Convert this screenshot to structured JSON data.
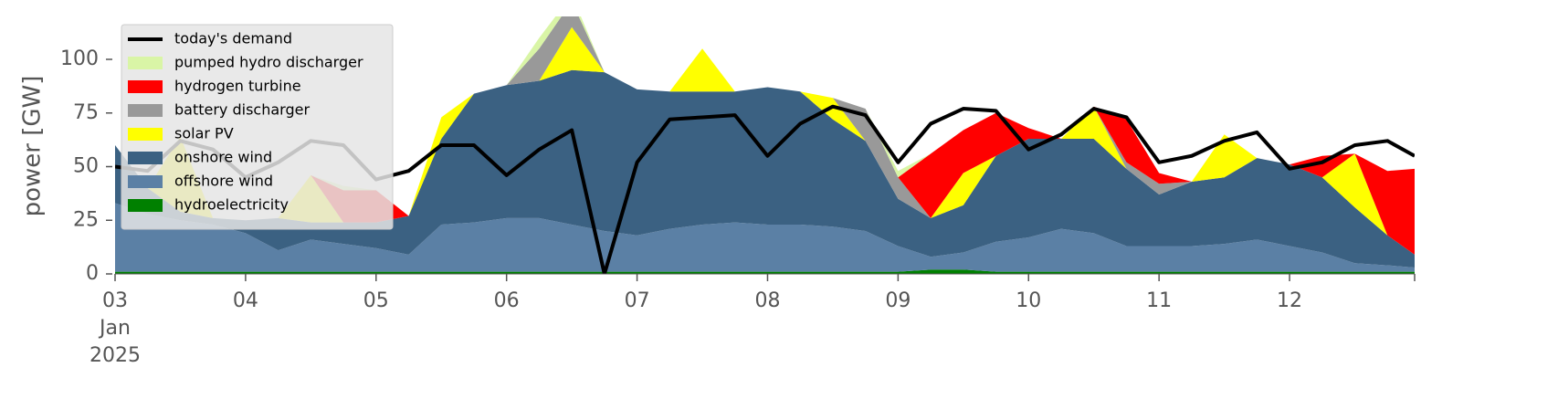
{
  "chart_data": {
    "type": "stacked_area",
    "ylabel": "power [GW]",
    "month_label": "Jan",
    "year_label": "2025",
    "x": [
      "2025-01-03T00:00",
      "2025-01-03T06:00",
      "2025-01-03T12:00",
      "2025-01-03T18:00",
      "2025-01-04T00:00",
      "2025-01-04T06:00",
      "2025-01-04T12:00",
      "2025-01-04T18:00",
      "2025-01-05T00:00",
      "2025-01-05T06:00",
      "2025-01-05T12:00",
      "2025-01-05T18:00",
      "2025-01-06T00:00",
      "2025-01-06T06:00",
      "2025-01-06T12:00",
      "2025-01-06T18:00",
      "2025-01-07T00:00",
      "2025-01-07T06:00",
      "2025-01-07T12:00",
      "2025-01-07T18:00",
      "2025-01-08T00:00",
      "2025-01-08T06:00",
      "2025-01-08T12:00",
      "2025-01-08T18:00",
      "2025-01-09T00:00",
      "2025-01-09T06:00",
      "2025-01-09T12:00",
      "2025-01-09T18:00",
      "2025-01-10T00:00",
      "2025-01-10T06:00",
      "2025-01-10T12:00",
      "2025-01-10T18:00",
      "2025-01-11T00:00",
      "2025-01-11T06:00",
      "2025-01-11T12:00",
      "2025-01-11T18:00",
      "2025-01-12T00:00",
      "2025-01-12T06:00",
      "2025-01-12T12:00",
      "2025-01-12T18:00",
      "2025-01-12T23:00"
    ],
    "xlim": [
      "2025-01-03T00:00",
      "2025-01-12T23:00"
    ],
    "xticks": [
      {
        "value": "2025-01-03T00:00",
        "label": "03"
      },
      {
        "value": "2025-01-04T00:00",
        "label": "04"
      },
      {
        "value": "2025-01-05T00:00",
        "label": "05"
      },
      {
        "value": "2025-01-06T00:00",
        "label": "06"
      },
      {
        "value": "2025-01-07T00:00",
        "label": "07"
      },
      {
        "value": "2025-01-08T00:00",
        "label": "08"
      },
      {
        "value": "2025-01-09T00:00",
        "label": "09"
      },
      {
        "value": "2025-01-10T00:00",
        "label": "10"
      },
      {
        "value": "2025-01-11T00:00",
        "label": "11"
      },
      {
        "value": "2025-01-12T00:00",
        "label": "12"
      }
    ],
    "ylim": [
      0,
      120
    ],
    "yticks": [
      0,
      25,
      50,
      75,
      100
    ],
    "legend": "upper left",
    "series": [
      {
        "name": "today's demand",
        "kind": "line",
        "color": "#000000",
        "values": [
          50,
          48,
          62,
          58,
          45,
          52,
          62,
          60,
          44,
          48,
          60,
          60,
          46,
          58,
          67,
          0,
          52,
          72,
          73,
          74,
          55,
          70,
          78,
          74,
          52,
          70,
          77,
          76,
          58,
          65,
          77,
          73,
          52,
          55,
          62,
          66,
          49,
          52,
          60,
          62,
          55
        ]
      },
      {
        "name": "pumped hydro discharger",
        "kind": "area",
        "color": "#d9f5a6",
        "values": [
          0,
          0,
          0,
          0,
          0,
          0,
          0,
          2,
          0,
          0,
          0,
          0,
          0,
          5,
          3,
          0,
          0,
          0,
          0,
          0,
          0,
          0,
          0,
          0,
          3,
          0,
          0,
          0,
          0,
          0,
          0,
          0,
          0,
          0,
          0,
          0,
          0,
          0,
          0,
          0,
          0
        ]
      },
      {
        "name": "hydrogen turbine",
        "kind": "area",
        "color": "#ff0000",
        "values": [
          0,
          0,
          0,
          0,
          0,
          0,
          0,
          15,
          15,
          0,
          0,
          0,
          0,
          0,
          0,
          0,
          0,
          0,
          0,
          0,
          0,
          0,
          0,
          0,
          0,
          30,
          20,
          20,
          5,
          0,
          0,
          20,
          5,
          0,
          0,
          0,
          0,
          10,
          0,
          30,
          40
        ]
      },
      {
        "name": "battery discharger",
        "kind": "area",
        "color": "#999999",
        "values": [
          0,
          0,
          0,
          0,
          0,
          0,
          0,
          0,
          0,
          0,
          0,
          0,
          0,
          15,
          12,
          0,
          0,
          0,
          0,
          0,
          0,
          0,
          0,
          15,
          10,
          0,
          0,
          0,
          0,
          0,
          0,
          3,
          5,
          0,
          0,
          0,
          0,
          0,
          0,
          0,
          0
        ]
      },
      {
        "name": "solar PV",
        "kind": "area",
        "color": "#ffff00",
        "values": [
          0,
          0,
          35,
          0,
          0,
          0,
          22,
          0,
          0,
          0,
          10,
          0,
          0,
          0,
          20,
          0,
          0,
          0,
          20,
          0,
          0,
          0,
          10,
          0,
          0,
          0,
          15,
          0,
          0,
          0,
          15,
          0,
          0,
          0,
          20,
          0,
          0,
          0,
          25,
          0,
          0
        ]
      },
      {
        "name": "onshore wind",
        "kind": "area",
        "color": "#3b6182",
        "values": [
          27,
          12,
          4,
          3,
          6,
          15,
          8,
          10,
          12,
          18,
          40,
          60,
          62,
          64,
          72,
          74,
          68,
          64,
          62,
          61,
          64,
          62,
          50,
          42,
          22,
          18,
          22,
          40,
          46,
          42,
          44,
          36,
          24,
          30,
          31,
          38,
          38,
          35,
          26,
          14,
          6
        ]
      },
      {
        "name": "offshore wind",
        "kind": "area",
        "color": "#5b80a5",
        "values": [
          32,
          27,
          24,
          22,
          18,
          10,
          15,
          13,
          11,
          8,
          22,
          23,
          25,
          25,
          22,
          19,
          17,
          20,
          22,
          23,
          22,
          22,
          21,
          19,
          12,
          6,
          8,
          14,
          16,
          20,
          18,
          12,
          12,
          12,
          13,
          15,
          12,
          9,
          4,
          3,
          2
        ]
      },
      {
        "name": "hydroelectricity",
        "kind": "area",
        "color": "#008000",
        "values": [
          1,
          1,
          1,
          1,
          1,
          1,
          1,
          1,
          1,
          1,
          1,
          1,
          1,
          1,
          1,
          1,
          1,
          1,
          1,
          1,
          1,
          1,
          1,
          1,
          1,
          2,
          2,
          1,
          1,
          1,
          1,
          1,
          1,
          1,
          1,
          1,
          1,
          1,
          1,
          1,
          1
        ]
      }
    ]
  }
}
